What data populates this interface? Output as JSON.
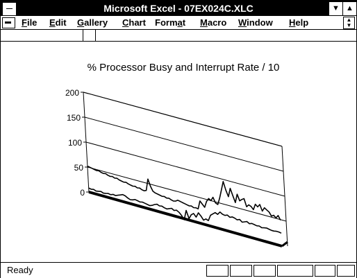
{
  "window": {
    "title": "Microsoft Excel - 07EX024C.XLC"
  },
  "menus": [
    {
      "label": "File",
      "accel": "F",
      "rest": "ile"
    },
    {
      "label": "Edit",
      "accel": "E",
      "rest": "dit"
    },
    {
      "label": "Gallery",
      "accel": "G",
      "rest": "allery"
    },
    {
      "label": "Chart",
      "accel": "C",
      "rest": "hart"
    },
    {
      "label": "Format",
      "pre": "Form",
      "accel": "a",
      "post": "t"
    },
    {
      "label": "Macro",
      "accel": "M",
      "rest": "acro"
    },
    {
      "label": "Window",
      "accel": "W",
      "rest": "indow"
    },
    {
      "label": "Help",
      "accel": "H",
      "rest": "elp"
    }
  ],
  "status": {
    "text": "Ready"
  },
  "chart_data": {
    "type": "line",
    "title": "% Processor Busy and Interrupt Rate / 10",
    "view": "3d",
    "yticks": [
      "0",
      "50",
      "100",
      "150",
      "200"
    ],
    "ylim": [
      0,
      200
    ],
    "series": [
      {
        "values": [
          52,
          51,
          50,
          49,
          48,
          49,
          47,
          46,
          47,
          45,
          44,
          45,
          43,
          44,
          42,
          41,
          40,
          41,
          39,
          38,
          37,
          38,
          36,
          37,
          35,
          34,
          36,
          60,
          47,
          38,
          36,
          35,
          34,
          33,
          34,
          32,
          33,
          31,
          30,
          31,
          34,
          33,
          32,
          31,
          30,
          29,
          30,
          28,
          29,
          28,
          45,
          40,
          35,
          48,
          55,
          52,
          60,
          50,
          48,
          62,
          80,
          98,
          82,
          70,
          88,
          75,
          62,
          80,
          68,
          72,
          75,
          60,
          65,
          63,
          58,
          70,
          66,
          72,
          60,
          68,
          65,
          62,
          55,
          58,
          54,
          60,
          52
        ]
      },
      {
        "values": [
          8,
          7,
          8,
          6,
          7,
          8,
          6,
          7,
          8,
          7,
          9,
          8,
          10,
          12,
          14,
          13,
          10,
          8,
          9,
          11,
          10,
          9,
          10,
          9,
          8,
          7,
          9,
          12,
          14,
          12,
          13,
          11,
          10,
          12,
          14,
          11,
          13,
          10,
          5,
          -2,
          18,
          3,
          12,
          16,
          10,
          20,
          15,
          8,
          12,
          10,
          22,
          26,
          30,
          28,
          34,
          31,
          30,
          32,
          29,
          31,
          30,
          28,
          30,
          26,
          28,
          30,
          27,
          29,
          28,
          27,
          28,
          26,
          27,
          28,
          27,
          26,
          26,
          27,
          27,
          26
        ]
      }
    ]
  }
}
